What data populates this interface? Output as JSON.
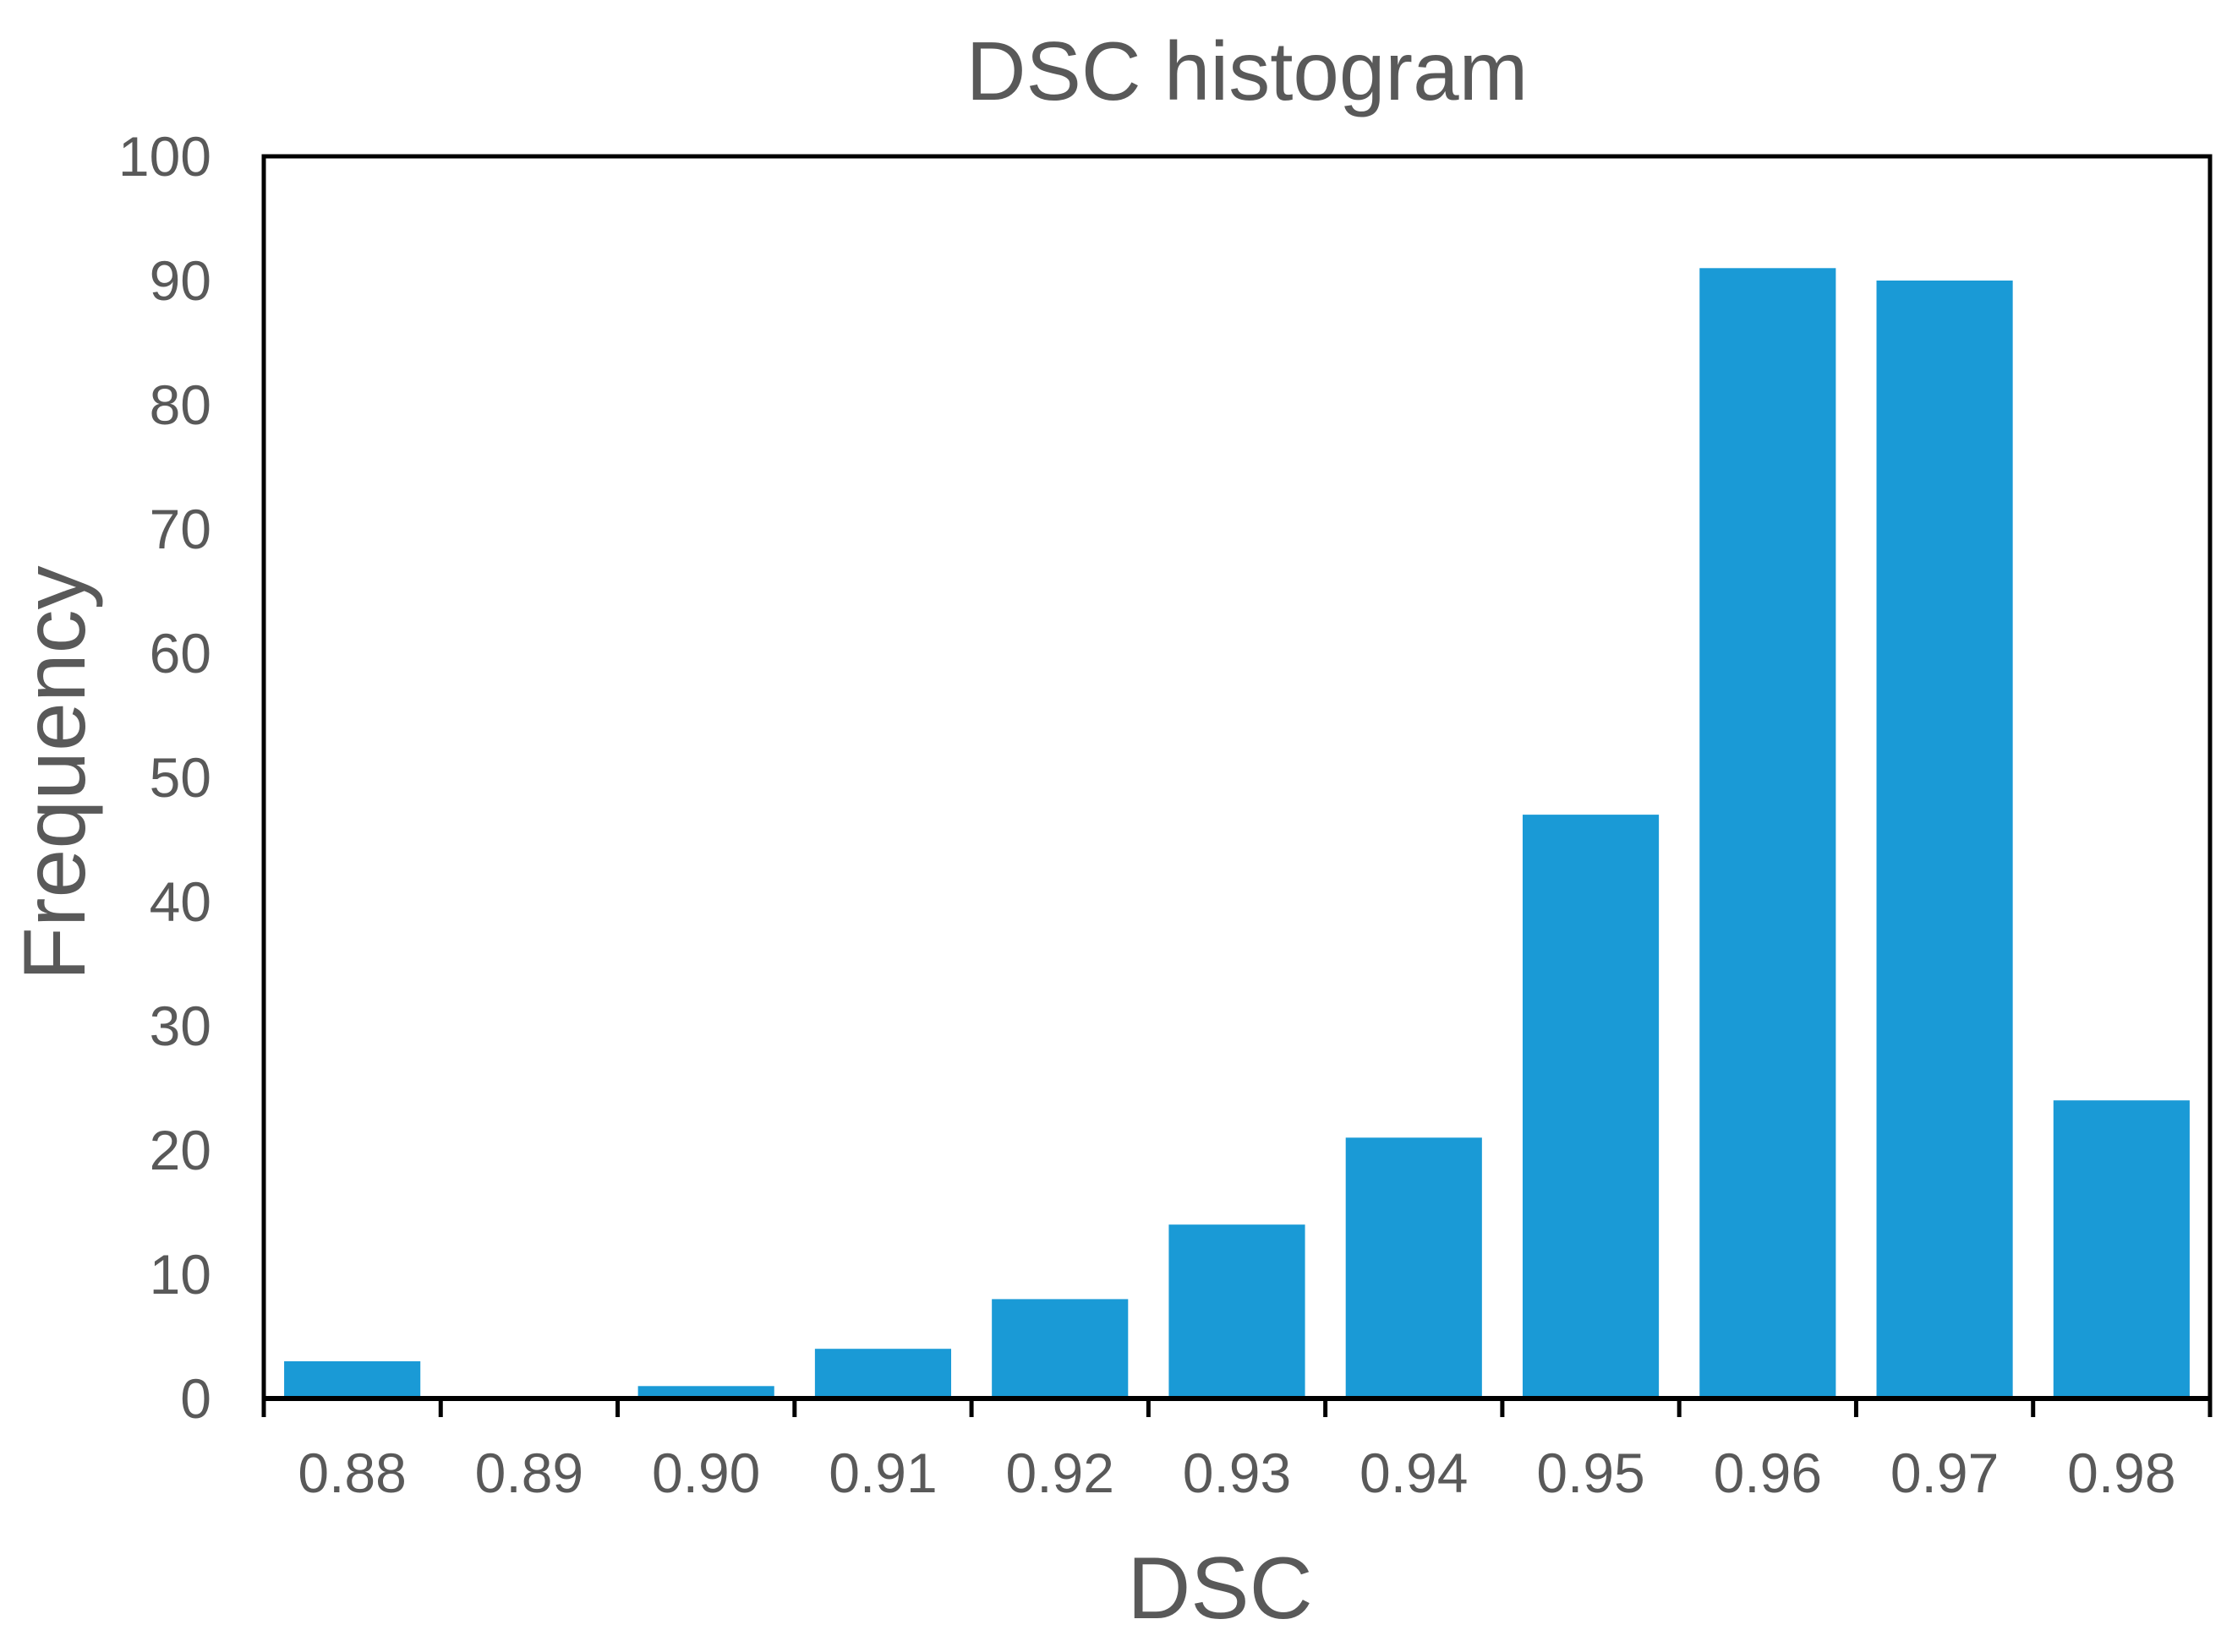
{
  "chart_data": {
    "type": "bar",
    "title": "DSC histogram",
    "xlabel": "DSC",
    "ylabel": "Frequency",
    "categories": [
      "0.88",
      "0.89",
      "0.90",
      "0.91",
      "0.92",
      "0.93",
      "0.94",
      "0.95",
      "0.96",
      "0.97",
      "0.98"
    ],
    "values": [
      3,
      0,
      1,
      4,
      8,
      14,
      21,
      47,
      91,
      90,
      24
    ],
    "ylim": [
      0,
      100
    ],
    "yticks": [
      "0",
      "10",
      "20",
      "30",
      "40",
      "50",
      "60",
      "70",
      "80",
      "90",
      "100"
    ],
    "grid": false,
    "legend": "none",
    "bar_color": "#1a9ad6",
    "frame_color": "#000000",
    "text_color": "#595959"
  }
}
